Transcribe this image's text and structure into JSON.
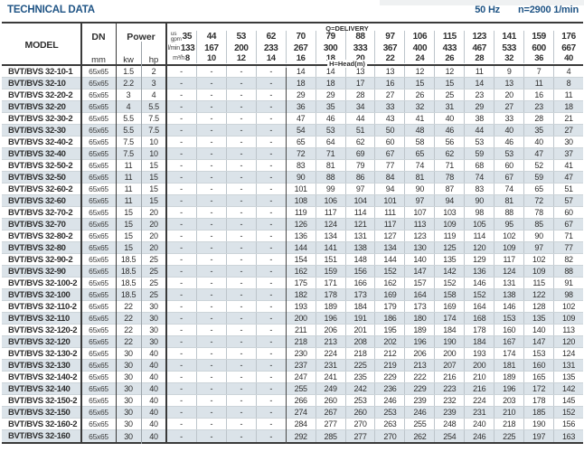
{
  "header": {
    "title": "TECHNICAL DATA",
    "frequency": "50 Hz",
    "speed": "n=2900 1/min"
  },
  "table": {
    "columns": {
      "model": "MODEL",
      "dn": "DN",
      "dn_unit": "mm",
      "power": "Power",
      "power_kw": "kw",
      "power_hp": "hp"
    },
    "delivery_header": {
      "label": "Q=DELIVERY",
      "head_label": "H=Head(m)",
      "rows": [
        {
          "unit_top": "us",
          "unit": "gpm",
          "values": [
            "35",
            "44",
            "53",
            "62",
            "70",
            "79",
            "88",
            "97",
            "106",
            "115",
            "123",
            "141",
            "159",
            "176"
          ]
        },
        {
          "unit": "l/min",
          "values": [
            "133",
            "167",
            "200",
            "233",
            "267",
            "300",
            "333",
            "367",
            "400",
            "433",
            "467",
            "533",
            "600",
            "667"
          ]
        },
        {
          "unit": "m³/h",
          "values": [
            "8",
            "10",
            "12",
            "14",
            "16",
            "18",
            "20",
            "22",
            "24",
            "26",
            "28",
            "32",
            "36",
            "40"
          ]
        }
      ]
    },
    "rows": [
      {
        "model": "BVT/BVS 32-10-1",
        "dn": "65x65",
        "kw": "1.5",
        "hp": "2",
        "head": [
          "-",
          "-",
          "-",
          "-",
          "14",
          "14",
          "13",
          "13",
          "12",
          "12",
          "11",
          "9",
          "7",
          "4"
        ]
      },
      {
        "model": "BVT/BVS 32-10",
        "dn": "65x65",
        "kw": "2.2",
        "hp": "3",
        "head": [
          "-",
          "-",
          "-",
          "-",
          "18",
          "18",
          "17",
          "16",
          "15",
          "15",
          "14",
          "13",
          "11",
          "8"
        ]
      },
      {
        "model": "BVT/BVS 32-20-2",
        "dn": "65x65",
        "kw": "3",
        "hp": "4",
        "head": [
          "-",
          "-",
          "-",
          "-",
          "29",
          "29",
          "28",
          "27",
          "26",
          "25",
          "23",
          "20",
          "16",
          "11"
        ]
      },
      {
        "model": "BVT/BVS 32-20",
        "dn": "65x65",
        "kw": "4",
        "hp": "5.5",
        "head": [
          "-",
          "-",
          "-",
          "-",
          "36",
          "35",
          "34",
          "33",
          "32",
          "31",
          "29",
          "27",
          "23",
          "18"
        ]
      },
      {
        "model": "BVT/BVS 32-30-2",
        "dn": "65x65",
        "kw": "5.5",
        "hp": "7.5",
        "head": [
          "-",
          "-",
          "-",
          "-",
          "47",
          "46",
          "44",
          "43",
          "41",
          "40",
          "38",
          "33",
          "28",
          "21"
        ]
      },
      {
        "model": "BVT/BVS 32-30",
        "dn": "65x65",
        "kw": "5.5",
        "hp": "7.5",
        "head": [
          "-",
          "-",
          "-",
          "-",
          "54",
          "53",
          "51",
          "50",
          "48",
          "46",
          "44",
          "40",
          "35",
          "27"
        ]
      },
      {
        "model": "BVT/BVS 32-40-2",
        "dn": "65x65",
        "kw": "7.5",
        "hp": "10",
        "head": [
          "-",
          "-",
          "-",
          "-",
          "65",
          "64",
          "62",
          "60",
          "58",
          "56",
          "53",
          "46",
          "40",
          "30"
        ]
      },
      {
        "model": "BVT/BVS 32-40",
        "dn": "65x65",
        "kw": "7.5",
        "hp": "10",
        "head": [
          "-",
          "-",
          "-",
          "-",
          "72",
          "71",
          "69",
          "67",
          "65",
          "62",
          "59",
          "53",
          "47",
          "37"
        ]
      },
      {
        "model": "BVT/BVS 32-50-2",
        "dn": "65x65",
        "kw": "11",
        "hp": "15",
        "head": [
          "-",
          "-",
          "-",
          "-",
          "83",
          "81",
          "79",
          "77",
          "74",
          "71",
          "68",
          "60",
          "52",
          "41"
        ]
      },
      {
        "model": "BVT/BVS 32-50",
        "dn": "65x65",
        "kw": "11",
        "hp": "15",
        "head": [
          "-",
          "-",
          "-",
          "-",
          "90",
          "88",
          "86",
          "84",
          "81",
          "78",
          "74",
          "67",
          "59",
          "47"
        ]
      },
      {
        "model": "BVT/BVS 32-60-2",
        "dn": "65x65",
        "kw": "11",
        "hp": "15",
        "head": [
          "-",
          "-",
          "-",
          "-",
          "101",
          "99",
          "97",
          "94",
          "90",
          "87",
          "83",
          "74",
          "65",
          "51"
        ]
      },
      {
        "model": "BVT/BVS 32-60",
        "dn": "65x65",
        "kw": "11",
        "hp": "15",
        "head": [
          "-",
          "-",
          "-",
          "-",
          "108",
          "106",
          "104",
          "101",
          "97",
          "94",
          "90",
          "81",
          "72",
          "57"
        ]
      },
      {
        "model": "BVT/BVS 32-70-2",
        "dn": "65x65",
        "kw": "15",
        "hp": "20",
        "head": [
          "-",
          "-",
          "-",
          "-",
          "119",
          "117",
          "114",
          "111",
          "107",
          "103",
          "98",
          "88",
          "78",
          "60"
        ]
      },
      {
        "model": "BVT/BVS 32-70",
        "dn": "65x65",
        "kw": "15",
        "hp": "20",
        "head": [
          "-",
          "-",
          "-",
          "-",
          "126",
          "124",
          "121",
          "117",
          "113",
          "109",
          "105",
          "95",
          "85",
          "67"
        ]
      },
      {
        "model": "BVT/BVS 32-80-2",
        "dn": "65x65",
        "kw": "15",
        "hp": "20",
        "head": [
          "-",
          "-",
          "-",
          "-",
          "136",
          "134",
          "131",
          "127",
          "123",
          "119",
          "114",
          "102",
          "90",
          "71"
        ]
      },
      {
        "model": "BVT/BVS 32-80",
        "dn": "65x65",
        "kw": "15",
        "hp": "20",
        "head": [
          "-",
          "-",
          "-",
          "-",
          "144",
          "141",
          "138",
          "134",
          "130",
          "125",
          "120",
          "109",
          "97",
          "77"
        ]
      },
      {
        "model": "BVT/BVS 32-90-2",
        "dn": "65x65",
        "kw": "18.5",
        "hp": "25",
        "head": [
          "-",
          "-",
          "-",
          "-",
          "154",
          "151",
          "148",
          "144",
          "140",
          "135",
          "129",
          "117",
          "102",
          "82"
        ]
      },
      {
        "model": "BVT/BVS 32-90",
        "dn": "65x65",
        "kw": "18.5",
        "hp": "25",
        "head": [
          "-",
          "-",
          "-",
          "-",
          "162",
          "159",
          "156",
          "152",
          "147",
          "142",
          "136",
          "124",
          "109",
          "88"
        ]
      },
      {
        "model": "BVT/BVS 32-100-2",
        "dn": "65x65",
        "kw": "18.5",
        "hp": "25",
        "head": [
          "-",
          "-",
          "-",
          "-",
          "175",
          "171",
          "166",
          "162",
          "157",
          "152",
          "146",
          "131",
          "115",
          "91"
        ]
      },
      {
        "model": "BVT/BVS 32-100",
        "dn": "65x65",
        "kw": "18.5",
        "hp": "25",
        "head": [
          "-",
          "-",
          "-",
          "-",
          "182",
          "178",
          "173",
          "169",
          "164",
          "158",
          "152",
          "138",
          "122",
          "98"
        ]
      },
      {
        "model": "BVT/BVS 32-110-2",
        "dn": "65x65",
        "kw": "22",
        "hp": "30",
        "head": [
          "-",
          "-",
          "-",
          "-",
          "193",
          "189",
          "184",
          "179",
          "173",
          "169",
          "164",
          "146",
          "128",
          "102"
        ]
      },
      {
        "model": "BVT/BVS 32-110",
        "dn": "65x65",
        "kw": "22",
        "hp": "30",
        "head": [
          "-",
          "-",
          "-",
          "-",
          "200",
          "196",
          "191",
          "186",
          "180",
          "174",
          "168",
          "153",
          "135",
          "109"
        ]
      },
      {
        "model": "BVT/BVS 32-120-2",
        "dn": "65x65",
        "kw": "22",
        "hp": "30",
        "head": [
          "-",
          "-",
          "-",
          "-",
          "211",
          "206",
          "201",
          "195",
          "189",
          "184",
          "178",
          "160",
          "140",
          "113"
        ]
      },
      {
        "model": "BVT/BVS 32-120",
        "dn": "65x65",
        "kw": "22",
        "hp": "30",
        "head": [
          "-",
          "-",
          "-",
          "-",
          "218",
          "213",
          "208",
          "202",
          "196",
          "190",
          "184",
          "167",
          "147",
          "120"
        ]
      },
      {
        "model": "BVT/BVS 32-130-2",
        "dn": "65x65",
        "kw": "30",
        "hp": "40",
        "head": [
          "-",
          "-",
          "-",
          "-",
          "230",
          "224",
          "218",
          "212",
          "206",
          "200",
          "193",
          "174",
          "153",
          "124"
        ]
      },
      {
        "model": "BVT/BVS 32-130",
        "dn": "65x65",
        "kw": "30",
        "hp": "40",
        "head": [
          "-",
          "-",
          "-",
          "-",
          "237",
          "231",
          "225",
          "219",
          "213",
          "207",
          "200",
          "181",
          "160",
          "131"
        ]
      },
      {
        "model": "BVT/BVS 32-140-2",
        "dn": "65x65",
        "kw": "30",
        "hp": "40",
        "head": [
          "-",
          "-",
          "-",
          "-",
          "247",
          "241",
          "235",
          "229",
          "222",
          "216",
          "210",
          "189",
          "165",
          "135"
        ]
      },
      {
        "model": "BVT/BVS 32-140",
        "dn": "65x65",
        "kw": "30",
        "hp": "40",
        "head": [
          "-",
          "-",
          "-",
          "-",
          "255",
          "249",
          "242",
          "236",
          "229",
          "223",
          "216",
          "196",
          "172",
          "142"
        ]
      },
      {
        "model": "BVT/BVS 32-150-2",
        "dn": "65x65",
        "kw": "30",
        "hp": "40",
        "head": [
          "-",
          "-",
          "-",
          "-",
          "266",
          "260",
          "253",
          "246",
          "239",
          "232",
          "224",
          "203",
          "178",
          "145"
        ]
      },
      {
        "model": "BVT/BVS 32-150",
        "dn": "65x65",
        "kw": "30",
        "hp": "40",
        "head": [
          "-",
          "-",
          "-",
          "-",
          "274",
          "267",
          "260",
          "253",
          "246",
          "239",
          "231",
          "210",
          "185",
          "152"
        ]
      },
      {
        "model": "BVT/BVS 32-160-2",
        "dn": "65x65",
        "kw": "30",
        "hp": "40",
        "head": [
          "-",
          "-",
          "-",
          "-",
          "284",
          "277",
          "270",
          "263",
          "255",
          "248",
          "240",
          "218",
          "190",
          "156"
        ]
      },
      {
        "model": "BVT/BVS 32-160",
        "dn": "65x65",
        "kw": "30",
        "hp": "40",
        "head": [
          "-",
          "-",
          "-",
          "-",
          "292",
          "285",
          "277",
          "270",
          "262",
          "254",
          "246",
          "225",
          "197",
          "163"
        ]
      }
    ]
  },
  "colors": {
    "accent_blue": "#1f5485",
    "row_shade": "#dbe3e9",
    "border_dark": "#3a3a3a"
  }
}
